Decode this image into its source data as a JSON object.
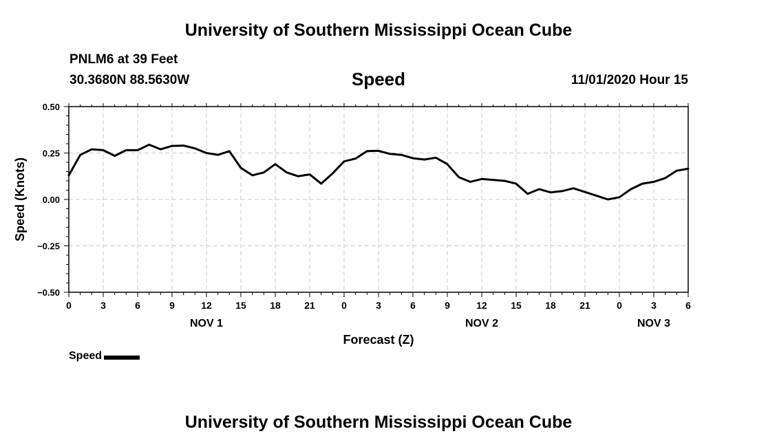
{
  "header": {
    "title": "University of Southern Mississippi Ocean Cube",
    "station": "PNLM6 at 39 Feet",
    "coords": "30.3680N 88.5630W",
    "datetime": "11/01/2020 Hour 15"
  },
  "footer": {
    "title": "University of Southern Mississippi Ocean Cube"
  },
  "chart_data": {
    "type": "line",
    "title": "Speed",
    "xlabel": "Forecast (Z)",
    "ylabel": "Speed (Knots)",
    "xlim": [
      0,
      54
    ],
    "ylim": [
      -0.5,
      0.5
    ],
    "grid": true,
    "x_ticks": [
      0,
      3,
      6,
      9,
      12,
      15,
      18,
      21,
      24,
      27,
      30,
      33,
      36,
      39,
      42,
      45,
      48,
      51,
      54
    ],
    "x_tick_labels": [
      "0",
      "3",
      "6",
      "9",
      "12",
      "15",
      "18",
      "21",
      "0",
      "3",
      "6",
      "9",
      "12",
      "15",
      "18",
      "21",
      "0",
      "3",
      "6"
    ],
    "y_ticks": [
      -0.5,
      -0.25,
      0.0,
      0.25,
      0.5
    ],
    "y_tick_labels": [
      "−0.50",
      "−0.25",
      "0.00",
      "0.25",
      "0.50"
    ],
    "day_labels": [
      {
        "x": 12,
        "label": "NOV 1"
      },
      {
        "x": 36,
        "label": "NOV 2"
      },
      {
        "x": 51,
        "label": "NOV 3"
      }
    ],
    "legend": {
      "position": "bottom-left",
      "label": "Speed",
      "color": "#000000"
    },
    "series": [
      {
        "name": "Speed",
        "color": "#000000",
        "x": [
          0,
          1,
          2,
          3,
          4,
          5,
          6,
          7,
          8,
          9,
          10,
          11,
          12,
          13,
          14,
          15,
          16,
          17,
          18,
          19,
          20,
          21,
          22,
          23,
          24,
          25,
          26,
          27,
          28,
          29,
          30,
          31,
          32,
          33,
          34,
          35,
          36,
          37,
          38,
          39,
          40,
          41,
          42,
          43,
          44,
          45,
          46,
          47,
          48,
          49,
          50,
          51,
          52,
          53,
          54
        ],
        "values": [
          0.13,
          0.24,
          0.27,
          0.265,
          0.235,
          0.265,
          0.265,
          0.295,
          0.27,
          0.288,
          0.29,
          0.275,
          0.25,
          0.24,
          0.26,
          0.17,
          0.13,
          0.145,
          0.19,
          0.145,
          0.125,
          0.135,
          0.085,
          0.14,
          0.205,
          0.22,
          0.26,
          0.262,
          0.245,
          0.24,
          0.222,
          0.215,
          0.225,
          0.19,
          0.12,
          0.095,
          0.11,
          0.105,
          0.1,
          0.085,
          0.03,
          0.055,
          0.038,
          0.045,
          0.06,
          0.04,
          0.02,
          0.0,
          0.012,
          0.055,
          0.085,
          0.095,
          0.115,
          0.155,
          0.165
        ]
      }
    ]
  }
}
